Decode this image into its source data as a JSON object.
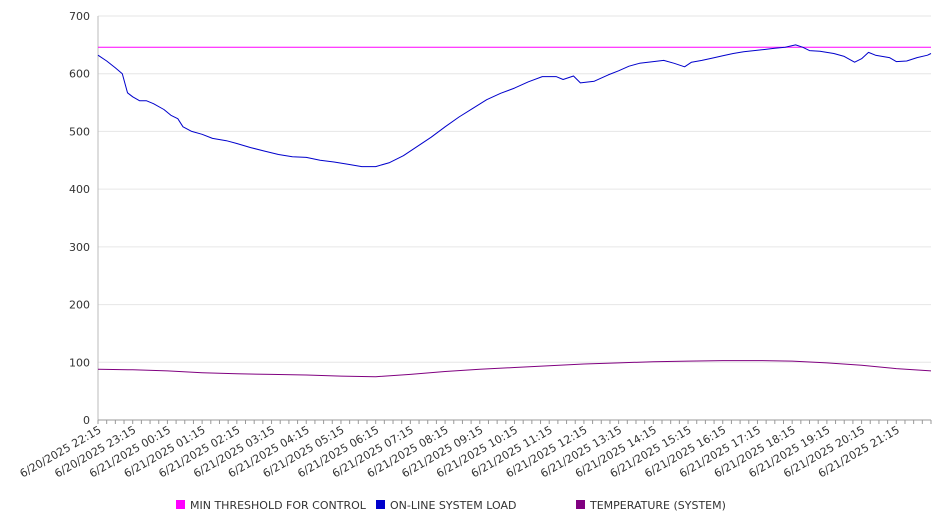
{
  "chart_data": {
    "type": "line",
    "title": "",
    "xlabel": "",
    "ylabel": "",
    "ylim": [
      0,
      700
    ],
    "yticks": [
      0,
      100,
      200,
      300,
      400,
      500,
      600,
      700
    ],
    "grid": "horizontal",
    "legend_position": "bottom",
    "categories": [
      "6/20/2025 22:15",
      "6/20/2025 23:15",
      "6/21/2025 00:15",
      "6/21/2025 01:15",
      "6/21/2025 02:15",
      "6/21/2025 03:15",
      "6/21/2025 04:15",
      "6/21/2025 05:15",
      "6/21/2025 06:15",
      "6/21/2025 07:15",
      "6/21/2025 08:15",
      "6/21/2025 09:15",
      "6/21/2025 10:15",
      "6/21/2025 11:15",
      "6/21/2025 12:15",
      "6/21/2025 13:15",
      "6/21/2025 14:15",
      "6/21/2025 15:15",
      "6/21/2025 16:15",
      "6/21/2025 17:15",
      "6/21/2025 18:15",
      "6/21/2025 19:15",
      "6/21/2025 20:15",
      "6/21/2025 21:15"
    ],
    "series": [
      {
        "name": "MIN THRESHOLD FOR CONTROL",
        "color": "#ff00ff",
        "points": [
          [
            0,
            646
          ],
          [
            24,
            646
          ]
        ]
      },
      {
        "name": "ON-LINE SYSTEM LOAD",
        "color": "#0000cc",
        "points": [
          [
            0.0,
            632
          ],
          [
            0.25,
            622
          ],
          [
            0.5,
            610
          ],
          [
            0.7,
            600
          ],
          [
            0.85,
            567
          ],
          [
            1.0,
            560
          ],
          [
            1.2,
            553
          ],
          [
            1.4,
            553
          ],
          [
            1.6,
            548
          ],
          [
            1.9,
            538
          ],
          [
            2.1,
            528
          ],
          [
            2.3,
            522
          ],
          [
            2.45,
            508
          ],
          [
            2.7,
            500
          ],
          [
            3.0,
            495
          ],
          [
            3.3,
            488
          ],
          [
            3.7,
            484
          ],
          [
            4.0,
            479
          ],
          [
            4.4,
            472
          ],
          [
            4.8,
            466
          ],
          [
            5.2,
            460
          ],
          [
            5.6,
            456
          ],
          [
            6.0,
            455
          ],
          [
            6.4,
            450
          ],
          [
            6.8,
            447
          ],
          [
            7.2,
            443
          ],
          [
            7.6,
            439
          ],
          [
            8.0,
            439
          ],
          [
            8.4,
            446
          ],
          [
            8.8,
            458
          ],
          [
            9.2,
            474
          ],
          [
            9.6,
            490
          ],
          [
            10.0,
            508
          ],
          [
            10.4,
            525
          ],
          [
            10.8,
            540
          ],
          [
            11.2,
            555
          ],
          [
            11.6,
            566
          ],
          [
            12.0,
            575
          ],
          [
            12.4,
            586
          ],
          [
            12.8,
            595
          ],
          [
            13.2,
            595
          ],
          [
            13.4,
            590
          ],
          [
            13.7,
            596
          ],
          [
            13.9,
            584
          ],
          [
            14.3,
            587
          ],
          [
            14.7,
            598
          ],
          [
            15.0,
            605
          ],
          [
            15.3,
            613
          ],
          [
            15.6,
            618
          ],
          [
            16.0,
            621
          ],
          [
            16.3,
            623
          ],
          [
            16.6,
            618
          ],
          [
            16.9,
            612
          ],
          [
            17.1,
            620
          ],
          [
            17.4,
            623
          ],
          [
            17.7,
            627
          ],
          [
            18.0,
            631
          ],
          [
            18.3,
            635
          ],
          [
            18.6,
            638
          ],
          [
            18.9,
            640
          ],
          [
            19.2,
            642
          ],
          [
            19.5,
            644
          ],
          [
            19.8,
            646
          ],
          [
            20.1,
            650
          ],
          [
            20.3,
            646
          ],
          [
            20.5,
            640
          ],
          [
            20.8,
            639
          ],
          [
            21.2,
            635
          ],
          [
            21.5,
            630
          ],
          [
            21.8,
            620
          ],
          [
            22.0,
            626
          ],
          [
            22.2,
            637
          ],
          [
            22.4,
            632
          ],
          [
            22.8,
            628
          ],
          [
            23.0,
            621
          ],
          [
            23.3,
            622
          ],
          [
            23.6,
            628
          ],
          [
            23.9,
            632
          ],
          [
            24.0,
            635
          ]
        ]
      },
      {
        "name": "TEMPERATURE (SYSTEM)",
        "color": "#800080",
        "points": [
          [
            0,
            88
          ],
          [
            1,
            87
          ],
          [
            2,
            85
          ],
          [
            3,
            82
          ],
          [
            4,
            80
          ],
          [
            5,
            79
          ],
          [
            6,
            78
          ],
          [
            7,
            76
          ],
          [
            8,
            75
          ],
          [
            9,
            79
          ],
          [
            10,
            84
          ],
          [
            11,
            88
          ],
          [
            12,
            91
          ],
          [
            13,
            94
          ],
          [
            14,
            97
          ],
          [
            15,
            99
          ],
          [
            16,
            101
          ],
          [
            17,
            102
          ],
          [
            18,
            103
          ],
          [
            19,
            103
          ],
          [
            20,
            102
          ],
          [
            21,
            99
          ],
          [
            22,
            95
          ],
          [
            23,
            89
          ],
          [
            24,
            85
          ]
        ]
      }
    ]
  }
}
